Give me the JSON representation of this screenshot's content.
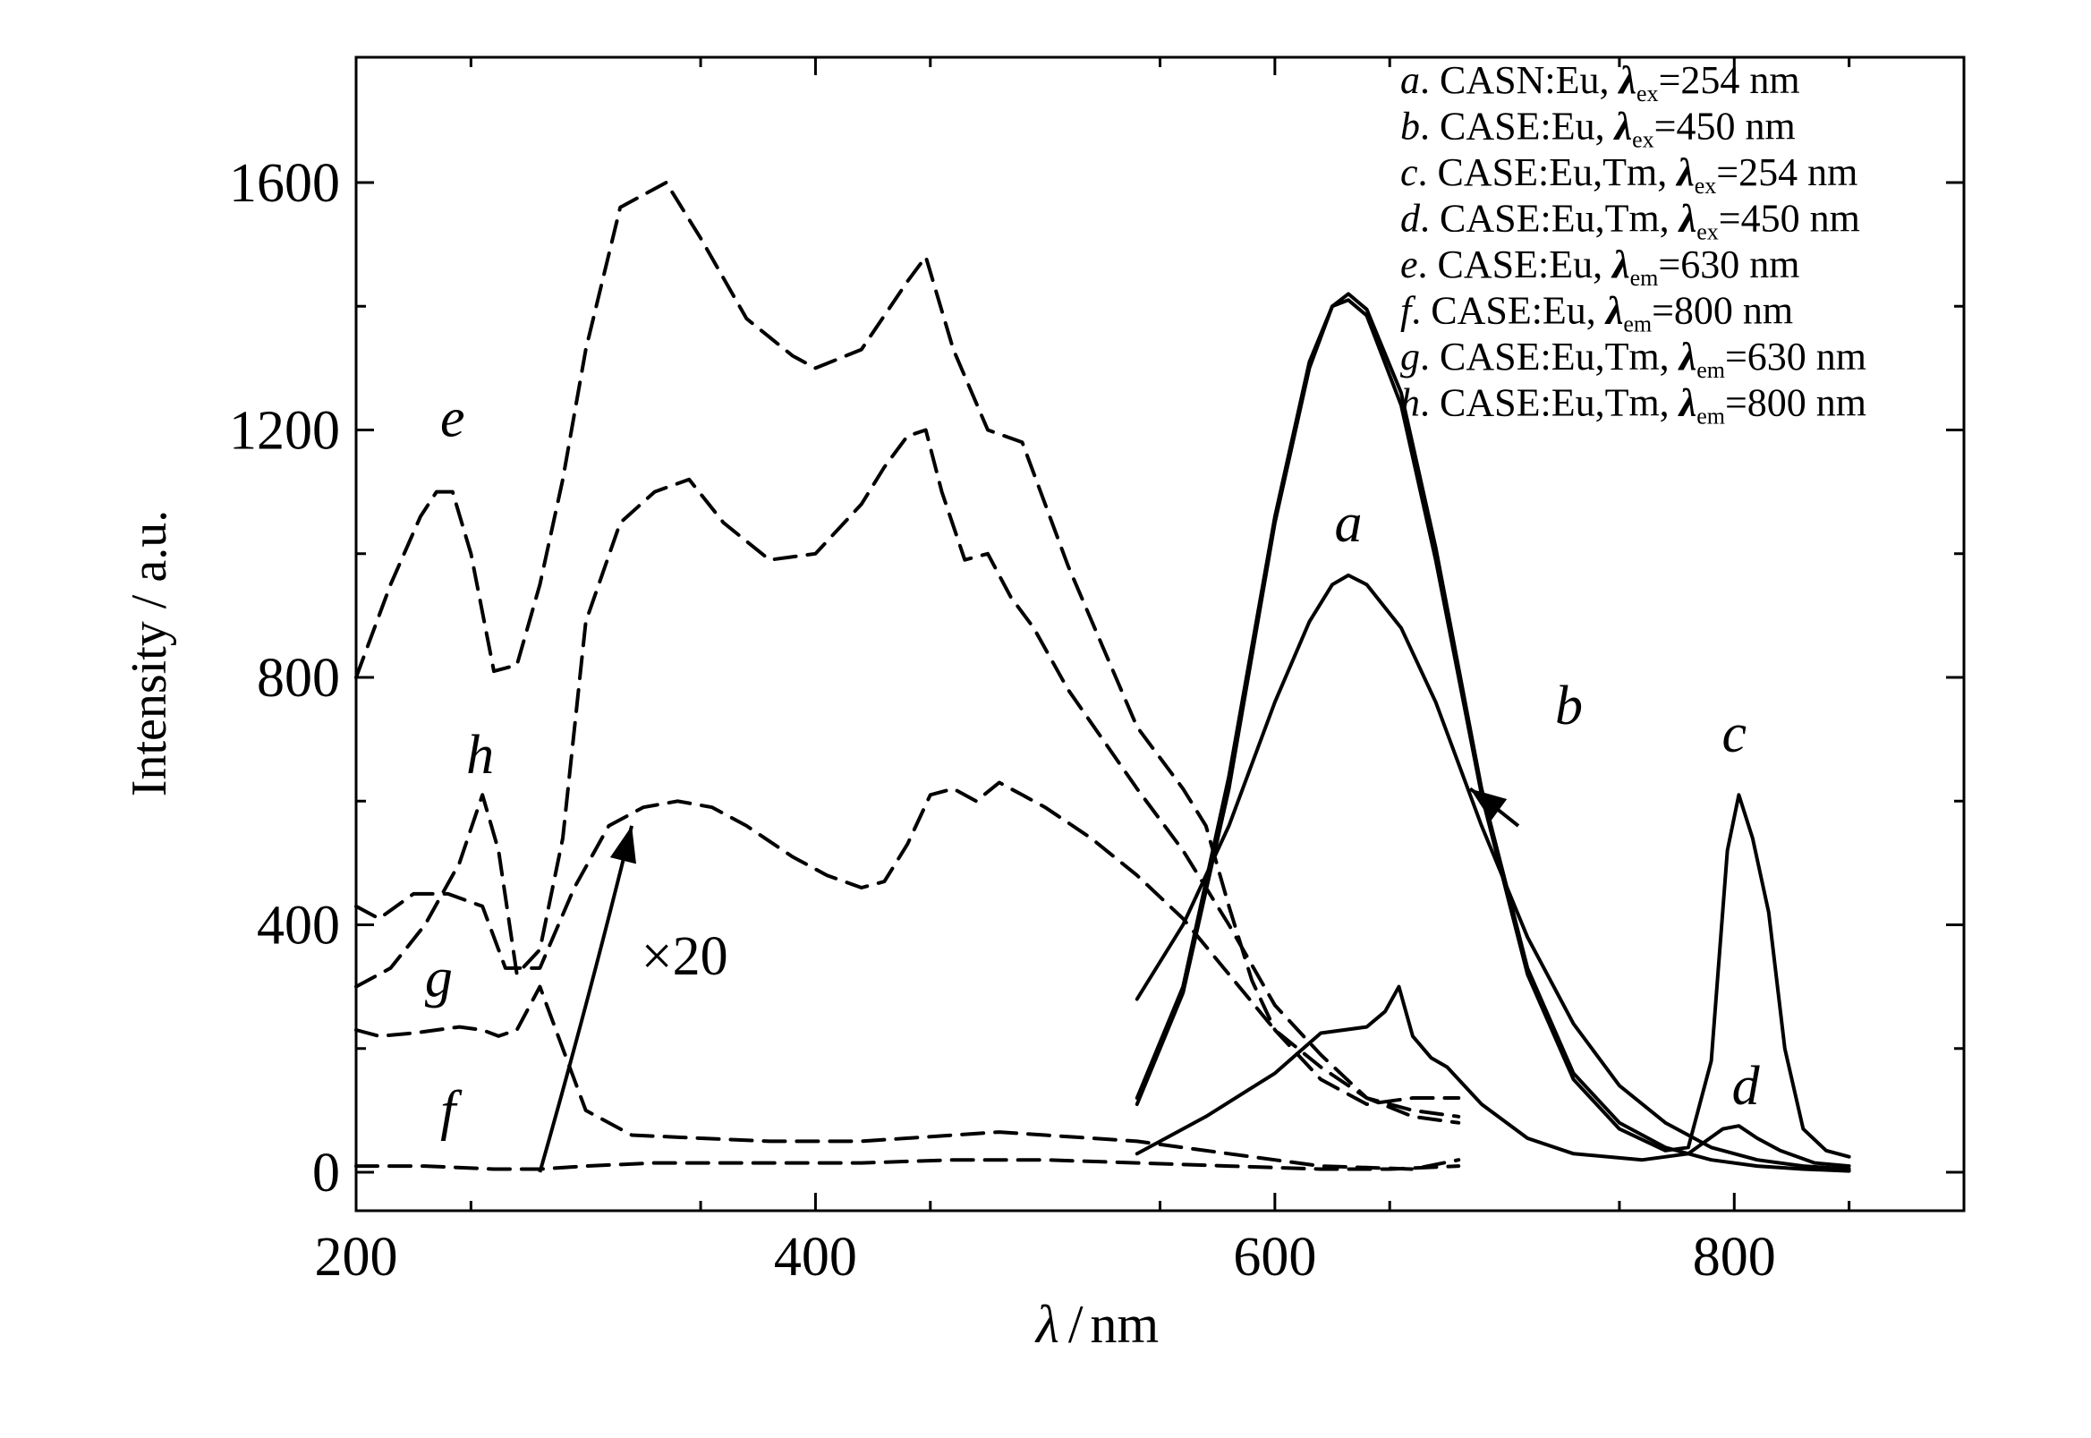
{
  "chart_data": {
    "type": "line",
    "xlabel": {
      "symbol": "λ",
      "unit": "nm"
    },
    "ylabel": "Intensity / a.u.",
    "xlim": [
      200,
      900
    ],
    "ylim": [
      -60,
      1800
    ],
    "xticks": [
      200,
      400,
      600,
      800
    ],
    "yticks": [
      0,
      400,
      800,
      1200,
      1600
    ],
    "grid": false,
    "legend_position": "top-right",
    "legend": [
      {
        "letter": "a",
        "name": "CASN:Eu,",
        "sym": "λ",
        "sub": "ex",
        "value": "=254 nm"
      },
      {
        "letter": "b",
        "name": "CASE:Eu,",
        "sym": "λ",
        "sub": "ex",
        "value": "=450 nm"
      },
      {
        "letter": "c",
        "name": "CASE:Eu,Tm,",
        "sym": "λ",
        "sub": "ex",
        "value": "=254 nm"
      },
      {
        "letter": "d",
        "name": "CASE:Eu,Tm,",
        "sym": "λ",
        "sub": "ex",
        "value": "=450 nm"
      },
      {
        "letter": "e",
        "name": "CASE:Eu,",
        "sym": "λ",
        "sub": "em",
        "value": "=630 nm"
      },
      {
        "letter": "f",
        "name": "CASE:Eu,",
        "sym": "λ",
        "sub": "em",
        "value": "=800 nm"
      },
      {
        "letter": "g",
        "name": "CASE:Eu,Tm,",
        "sym": "λ",
        "sub": "em",
        "value": "=630 nm"
      },
      {
        "letter": "h",
        "name": "CASE:Eu,Tm,",
        "sym": "λ",
        "sub": "em",
        "value": "=800 nm"
      }
    ],
    "annotations": [
      {
        "text": "a",
        "x": 632,
        "y": 1020
      },
      {
        "text": "b",
        "x": 728,
        "y": 725
      },
      {
        "text": "c",
        "x": 800,
        "y": 680
      },
      {
        "text": "d",
        "x": 805,
        "y": 110
      },
      {
        "text": "e",
        "x": 242,
        "y": 1190
      },
      {
        "text": "h",
        "x": 254,
        "y": 645
      },
      {
        "text": "g",
        "x": 236,
        "y": 285
      },
      {
        "text": "f",
        "x": 240,
        "y": 70
      },
      {
        "text": "×20",
        "x": 343,
        "y": 320
      }
    ],
    "arrows": [
      {
        "from": [
          280,
          0
        ],
        "to": [
          320,
          560
        ],
        "curve": [
          300,
          260
        ]
      },
      {
        "from": [
          706,
          560
        ],
        "to": [
          685,
          620
        ],
        "curve": [
          696,
          590
        ]
      }
    ],
    "series": [
      {
        "id": "a",
        "style": "solid",
        "x": [
          540,
          560,
          580,
          600,
          615,
          625,
          632,
          640,
          655,
          670,
          690,
          710,
          730,
          750,
          770,
          790,
          810,
          830,
          850
        ],
        "y": [
          280,
          400,
          560,
          760,
          890,
          950,
          965,
          950,
          880,
          760,
          560,
          380,
          240,
          140,
          80,
          40,
          20,
          10,
          5
        ]
      },
      {
        "id": "b",
        "style": "solid",
        "x": [
          540,
          560,
          580,
          600,
          615,
          625,
          632,
          640,
          655,
          670,
          690,
          710,
          730,
          750,
          770,
          790,
          810,
          830,
          850
        ],
        "y": [
          110,
          290,
          620,
          1050,
          1300,
          1400,
          1420,
          1395,
          1260,
          1010,
          620,
          330,
          160,
          80,
          40,
          20,
          10,
          5,
          2
        ]
      },
      {
        "id": "c",
        "style": "solid",
        "x": [
          540,
          560,
          580,
          600,
          615,
          625,
          632,
          640,
          655,
          670,
          690,
          710,
          730,
          750,
          770,
          780,
          790,
          797,
          802,
          808,
          815,
          822,
          830,
          840,
          850
        ],
        "y": [
          120,
          300,
          640,
          1060,
          1310,
          1400,
          1410,
          1385,
          1240,
          990,
          610,
          320,
          150,
          70,
          35,
          40,
          180,
          520,
          610,
          540,
          420,
          200,
          70,
          35,
          25
        ]
      },
      {
        "id": "d",
        "style": "solid",
        "x": [
          540,
          570,
          600,
          620,
          640,
          648,
          654,
          660,
          668,
          675,
          690,
          710,
          730,
          760,
          780,
          795,
          802,
          810,
          820,
          835,
          850
        ],
        "y": [
          30,
          90,
          160,
          225,
          235,
          260,
          300,
          220,
          185,
          170,
          110,
          55,
          30,
          20,
          30,
          70,
          75,
          55,
          35,
          15,
          10
        ]
      },
      {
        "id": "e",
        "style": "dashed",
        "x": [
          200,
          215,
          228,
          235,
          242,
          250,
          260,
          270,
          280,
          290,
          300,
          315,
          335,
          350,
          370,
          390,
          400,
          420,
          440,
          448,
          460,
          475,
          490,
          510,
          540,
          560,
          570,
          580,
          590,
          600,
          620,
          640,
          660,
          680
        ],
        "y": [
          800,
          950,
          1060,
          1100,
          1100,
          1000,
          810,
          820,
          950,
          1120,
          1330,
          1560,
          1600,
          1510,
          1380,
          1320,
          1300,
          1330,
          1440,
          1480,
          1330,
          1200,
          1180,
          980,
          720,
          620,
          560,
          430,
          310,
          230,
          150,
          110,
          120,
          120
        ]
      },
      {
        "id": "f",
        "style": "dashed",
        "x": [
          200,
          230,
          260,
          280,
          300,
          330,
          380,
          420,
          460,
          480,
          500,
          540,
          580,
          620,
          650,
          680
        ],
        "y": [
          10,
          10,
          5,
          5,
          10,
          15,
          15,
          15,
          20,
          20,
          20,
          15,
          10,
          5,
          5,
          10
        ]
      },
      {
        "id": "g",
        "style": "dashed",
        "x": [
          200,
          210,
          225,
          245,
          255,
          262,
          270,
          280,
          290,
          300,
          320,
          350,
          380,
          420,
          460,
          480,
          500,
          540,
          580,
          620,
          660,
          680
        ],
        "y": [
          230,
          220,
          225,
          235,
          230,
          220,
          230,
          300,
          200,
          100,
          60,
          55,
          50,
          50,
          60,
          65,
          60,
          50,
          30,
          10,
          5,
          20
        ]
      },
      {
        "id": "h",
        "style": "dashed",
        "x": [
          200,
          215,
          230,
          245,
          255,
          262,
          270,
          280,
          290,
          300,
          315,
          330,
          345,
          360,
          380,
          400,
          420,
          430,
          440,
          448,
          455,
          465,
          475,
          485,
          495,
          510,
          540,
          560,
          580,
          600,
          620,
          640,
          660,
          680
        ],
        "y": [
          300,
          330,
          400,
          500,
          610,
          520,
          320,
          360,
          540,
          890,
          1050,
          1100,
          1120,
          1050,
          990,
          1000,
          1080,
          1140,
          1190,
          1200,
          1100,
          990,
          1000,
          930,
          880,
          780,
          620,
          520,
          400,
          270,
          190,
          120,
          90,
          80
        ]
      },
      {
        "id": "x20",
        "style": "dashed",
        "x": [
          200,
          210,
          225,
          240,
          255,
          265,
          280,
          295,
          310,
          325,
          340,
          355,
          370,
          390,
          405,
          420,
          430,
          440,
          450,
          460,
          470,
          480,
          490,
          500,
          520,
          540,
          560,
          580,
          600,
          620,
          640,
          660,
          680
        ],
        "y": [
          430,
          410,
          450,
          450,
          430,
          330,
          330,
          460,
          560,
          590,
          600,
          590,
          560,
          510,
          480,
          460,
          470,
          530,
          610,
          620,
          600,
          630,
          610,
          590,
          540,
          480,
          410,
          320,
          230,
          170,
          120,
          100,
          90
        ]
      }
    ]
  }
}
